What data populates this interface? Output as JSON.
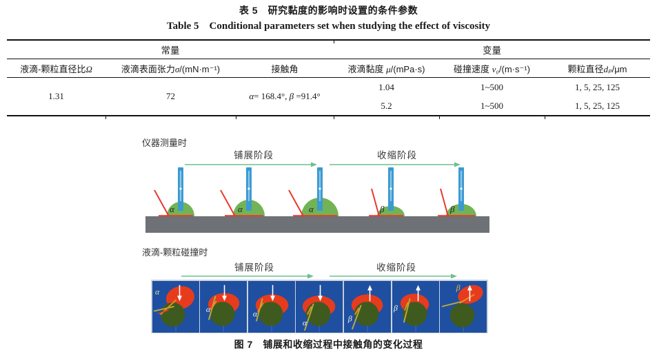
{
  "page": {
    "table_title_cn": "表 5　研究黏度的影响时设置的条件参数",
    "table_title_en": "Table 5　Conditional parameters set when studying the effect of viscosity"
  },
  "table": {
    "group_headers": [
      {
        "label": "常量"
      },
      {
        "label": "变量"
      }
    ],
    "columns": [
      {
        "cn": "液滴-颗粒直径比",
        "var": "Ω",
        "unit": ""
      },
      {
        "cn": "液滴表面张力",
        "var": "σ",
        "unit": "/(mN·m⁻¹)"
      },
      {
        "cn": "接触角",
        "var": "",
        "unit": ""
      },
      {
        "cn": "液滴黏度 ",
        "var": "μ",
        "unit": "/(mPa·s)"
      },
      {
        "cn": "碰撞速度 ",
        "var": "v₀",
        "unit": "/(m·s⁻¹)"
      },
      {
        "cn": "颗粒直径",
        "var": "dₚ",
        "unit": "/μm"
      }
    ],
    "constant_cells": {
      "diameter_ratio": "1.31",
      "surface_tension": "72",
      "contact_angle": {
        "v1": "α",
        "t1": "= 168.4°, ",
        "v2": "β",
        "t2": " =91.4°"
      }
    },
    "variable_rows": [
      {
        "viscosity": "1.04",
        "velocity": "1~500",
        "particle_diameter": "1, 5, 25, 125"
      },
      {
        "viscosity": "5.2",
        "velocity": "1~500",
        "particle_diameter": "1, 5, 25, 125"
      }
    ]
  },
  "figure": {
    "instrument_label": "仪器测量时",
    "impact_label": "液滴-颗粒碰撞时",
    "spread_phase_1": "铺展阶段",
    "retract_phase_1": "收缩阶段",
    "spread_phase_2": "铺展阶段",
    "retract_phase_2": "收缩阶段",
    "caption": "图 7　铺展和收缩过程中接触角的变化过程",
    "instrument_droplets": [
      "α",
      "α",
      "α",
      "β",
      "β"
    ],
    "impact_frames": [
      {
        "label": "α",
        "arrow": "down"
      },
      {
        "label": "α",
        "arrow": "down"
      },
      {
        "label": "α",
        "arrow": "down"
      },
      {
        "label": "α",
        "arrow": "down"
      },
      {
        "label": "β",
        "arrow": "up"
      },
      {
        "label": "β",
        "arrow": "up"
      },
      {
        "label": "β",
        "arrow": "up"
      }
    ],
    "colors": {
      "needle_blue": "#3a9ad2",
      "droplet_green": "#72b356",
      "surface_gray": "#6e7277",
      "arrow_green": "#6cc08e",
      "frame_blue": "#1f4fa0",
      "particle_green": "#3f5a1f",
      "droplet_red": "#e73b1e",
      "tangent_red": "#e8392b",
      "tangent_yellow": "#b9a83e",
      "tangent_orange": "#e6901e",
      "angle_label_dark": "#1c1c1c",
      "angle_label_light": "#f2f0e2"
    }
  }
}
